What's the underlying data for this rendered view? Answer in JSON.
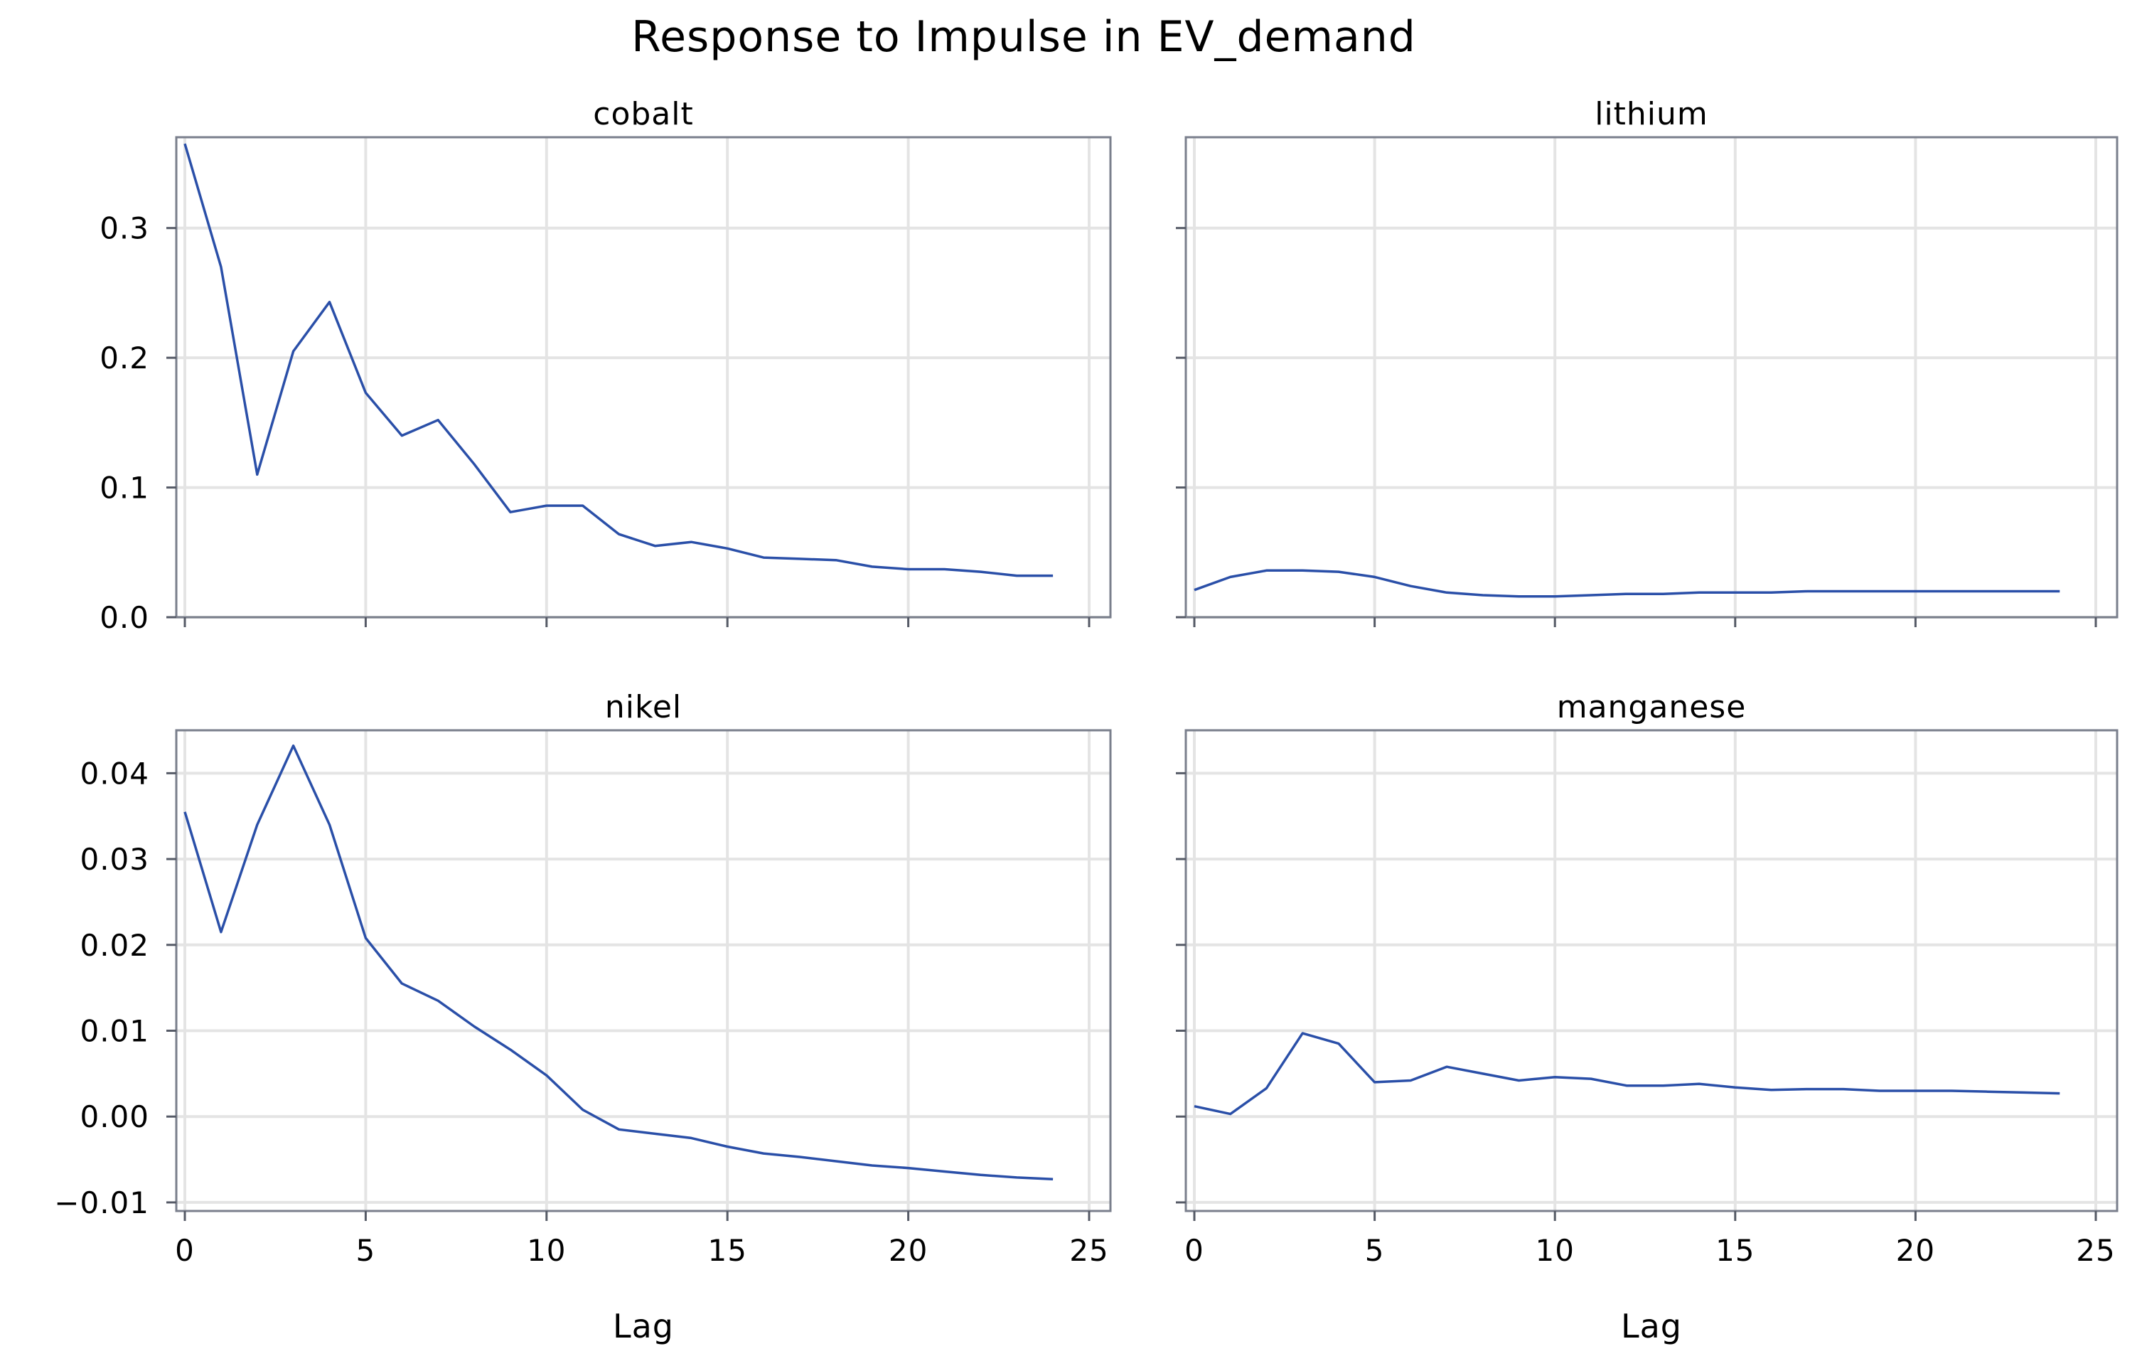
{
  "chart_data": {
    "type": "line",
    "title": "Response to Impulse in EV_demand",
    "xlabel": "Lag",
    "xlim": [
      0,
      25
    ],
    "xticks": [
      0,
      5,
      10,
      15,
      20,
      25
    ],
    "grid": true,
    "panels": [
      {
        "id": "cobalt",
        "title": "cobalt",
        "ylim": [
          0.0,
          0.37
        ],
        "yticks": [
          0.0,
          0.1,
          0.2,
          0.3
        ],
        "ytick_labels": [
          "0.0",
          "0.1",
          "0.2",
          "0.3"
        ],
        "show_y_labels": true,
        "show_x_labels": false,
        "x": [
          0,
          1,
          2,
          3,
          4,
          5,
          6,
          7,
          8,
          9,
          10,
          11,
          12,
          13,
          14,
          15,
          16,
          17,
          18,
          19,
          20,
          21,
          22,
          23,
          24
        ],
        "y": [
          0.365,
          0.27,
          0.11,
          0.205,
          0.243,
          0.173,
          0.14,
          0.152,
          0.118,
          0.081,
          0.086,
          0.086,
          0.064,
          0.055,
          0.058,
          0.053,
          0.046,
          0.045,
          0.044,
          0.039,
          0.037,
          0.037,
          0.035,
          0.032,
          0.032
        ]
      },
      {
        "id": "lithium",
        "title": "lithium",
        "ylim": [
          0.0,
          0.37
        ],
        "yticks": [
          0.0,
          0.1,
          0.2,
          0.3
        ],
        "ytick_labels": [
          "0.0",
          "0.1",
          "0.2",
          "0.3"
        ],
        "show_y_labels": false,
        "show_x_labels": false,
        "x": [
          0,
          1,
          2,
          3,
          4,
          5,
          6,
          7,
          8,
          9,
          10,
          11,
          12,
          13,
          14,
          15,
          16,
          17,
          18,
          19,
          20,
          21,
          22,
          23,
          24
        ],
        "y": [
          0.021,
          0.031,
          0.036,
          0.036,
          0.035,
          0.031,
          0.024,
          0.019,
          0.017,
          0.016,
          0.016,
          0.017,
          0.018,
          0.018,
          0.019,
          0.019,
          0.019,
          0.02,
          0.02,
          0.02,
          0.02,
          0.02,
          0.02,
          0.02,
          0.02
        ]
      },
      {
        "id": "nikel",
        "title": "nikel",
        "ylim": [
          -0.011,
          0.045
        ],
        "yticks": [
          -0.01,
          0.0,
          0.01,
          0.02,
          0.03,
          0.04
        ],
        "ytick_labels": [
          "−0.01",
          "0.00",
          "0.01",
          "0.02",
          "0.03",
          "0.04"
        ],
        "show_y_labels": true,
        "show_x_labels": true,
        "x": [
          0,
          1,
          2,
          3,
          4,
          5,
          6,
          7,
          8,
          9,
          10,
          11,
          12,
          13,
          14,
          15,
          16,
          17,
          18,
          19,
          20,
          21,
          22,
          23,
          24
        ],
        "y": [
          0.0355,
          0.0215,
          0.034,
          0.0432,
          0.034,
          0.0208,
          0.0155,
          0.0135,
          0.0105,
          0.0078,
          0.0048,
          0.0008,
          -0.0015,
          -0.002,
          -0.0025,
          -0.0035,
          -0.0043,
          -0.0047,
          -0.0052,
          -0.0057,
          -0.006,
          -0.0064,
          -0.0068,
          -0.0071,
          -0.0073
        ]
      },
      {
        "id": "manganese",
        "title": "manganese",
        "ylim": [
          -0.011,
          0.045
        ],
        "yticks": [
          -0.01,
          0.0,
          0.01,
          0.02,
          0.03,
          0.04
        ],
        "ytick_labels": [
          "−0.01",
          "0.00",
          "0.01",
          "0.02",
          "0.03",
          "0.04"
        ],
        "show_y_labels": false,
        "show_x_labels": true,
        "x": [
          0,
          1,
          2,
          3,
          4,
          5,
          6,
          7,
          8,
          9,
          10,
          11,
          12,
          13,
          14,
          15,
          16,
          17,
          18,
          19,
          20,
          21,
          22,
          23,
          24
        ],
        "y": [
          0.0012,
          0.0003,
          0.0033,
          0.0097,
          0.0085,
          0.004,
          0.0042,
          0.0058,
          0.005,
          0.0042,
          0.0046,
          0.0044,
          0.0036,
          0.0036,
          0.0038,
          0.0034,
          0.0031,
          0.0032,
          0.0032,
          0.003,
          0.003,
          0.003,
          0.0029,
          0.0028,
          0.0027
        ]
      }
    ]
  }
}
